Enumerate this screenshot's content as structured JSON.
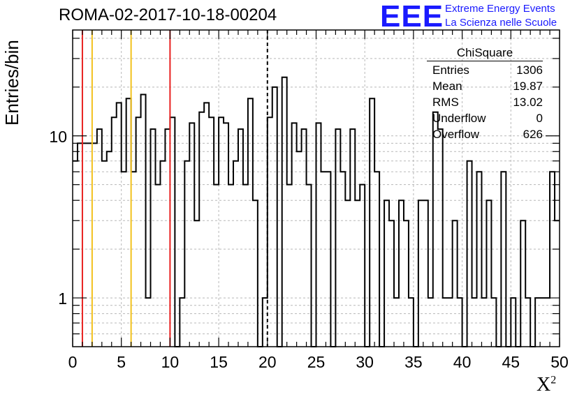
{
  "header": {
    "title": "ROMA-02-2017-10-18-00204",
    "logo_text": "EEE",
    "logo_line1": "Extreme Energy Events",
    "logo_line2": "La Scienza nelle Scuole"
  },
  "stats": {
    "name": "ChiSquare",
    "rows": [
      {
        "label": "Entries",
        "value": "1306"
      },
      {
        "label": "Mean",
        "value": "19.87"
      },
      {
        "label": "RMS",
        "value": "13.02"
      },
      {
        "label": "Underflow",
        "value": "0"
      },
      {
        "label": "Overflow",
        "value": "626"
      }
    ]
  },
  "chart_data": {
    "type": "histogram",
    "title": "ROMA-02-2017-10-18-00204",
    "xlabel": "X²",
    "ylabel": "Entries/bin",
    "yscale": "log",
    "xlim": [
      0,
      50
    ],
    "ylim": [
      0.5,
      45
    ],
    "bin_width": 0.5,
    "x_ticks": [
      "0",
      "5",
      "10",
      "15",
      "20",
      "25",
      "30",
      "35",
      "40",
      "45",
      "50"
    ],
    "y_ticks": [
      {
        "value": 1,
        "label": "1"
      },
      {
        "value": 10,
        "label": "10"
      }
    ],
    "grid": true,
    "counts": [
      7,
      9,
      9,
      9,
      9,
      11,
      7,
      8,
      13,
      16,
      6,
      17,
      6,
      13,
      18,
      1,
      11,
      5,
      7,
      11,
      13,
      0,
      1,
      7,
      12,
      3,
      14,
      16,
      13,
      5,
      13,
      12,
      5,
      7,
      11,
      5,
      17,
      4,
      0,
      1,
      13,
      20,
      0,
      23,
      5,
      12,
      8,
      11,
      5,
      0,
      12,
      6,
      6,
      0,
      11,
      6,
      4,
      11,
      4,
      5,
      0,
      17,
      6,
      0,
      4,
      3,
      1,
      4,
      3,
      1,
      0,
      4,
      4,
      1,
      14,
      11,
      1,
      1,
      3,
      1,
      0,
      7,
      1,
      6,
      1,
      4,
      1,
      0,
      6,
      0,
      1,
      0,
      3,
      1,
      0,
      1,
      1,
      1,
      6,
      3
    ],
    "vertical_lines": [
      {
        "x": 1,
        "color": "#e8201f"
      },
      {
        "x": 2,
        "color": "#f2c11c"
      },
      {
        "x": 6,
        "color": "#f2c11c"
      },
      {
        "x": 10,
        "color": "#e8201f"
      },
      {
        "x": 20,
        "color": "#000000",
        "style": "dashed"
      }
    ],
    "stats_box": "top-right"
  }
}
